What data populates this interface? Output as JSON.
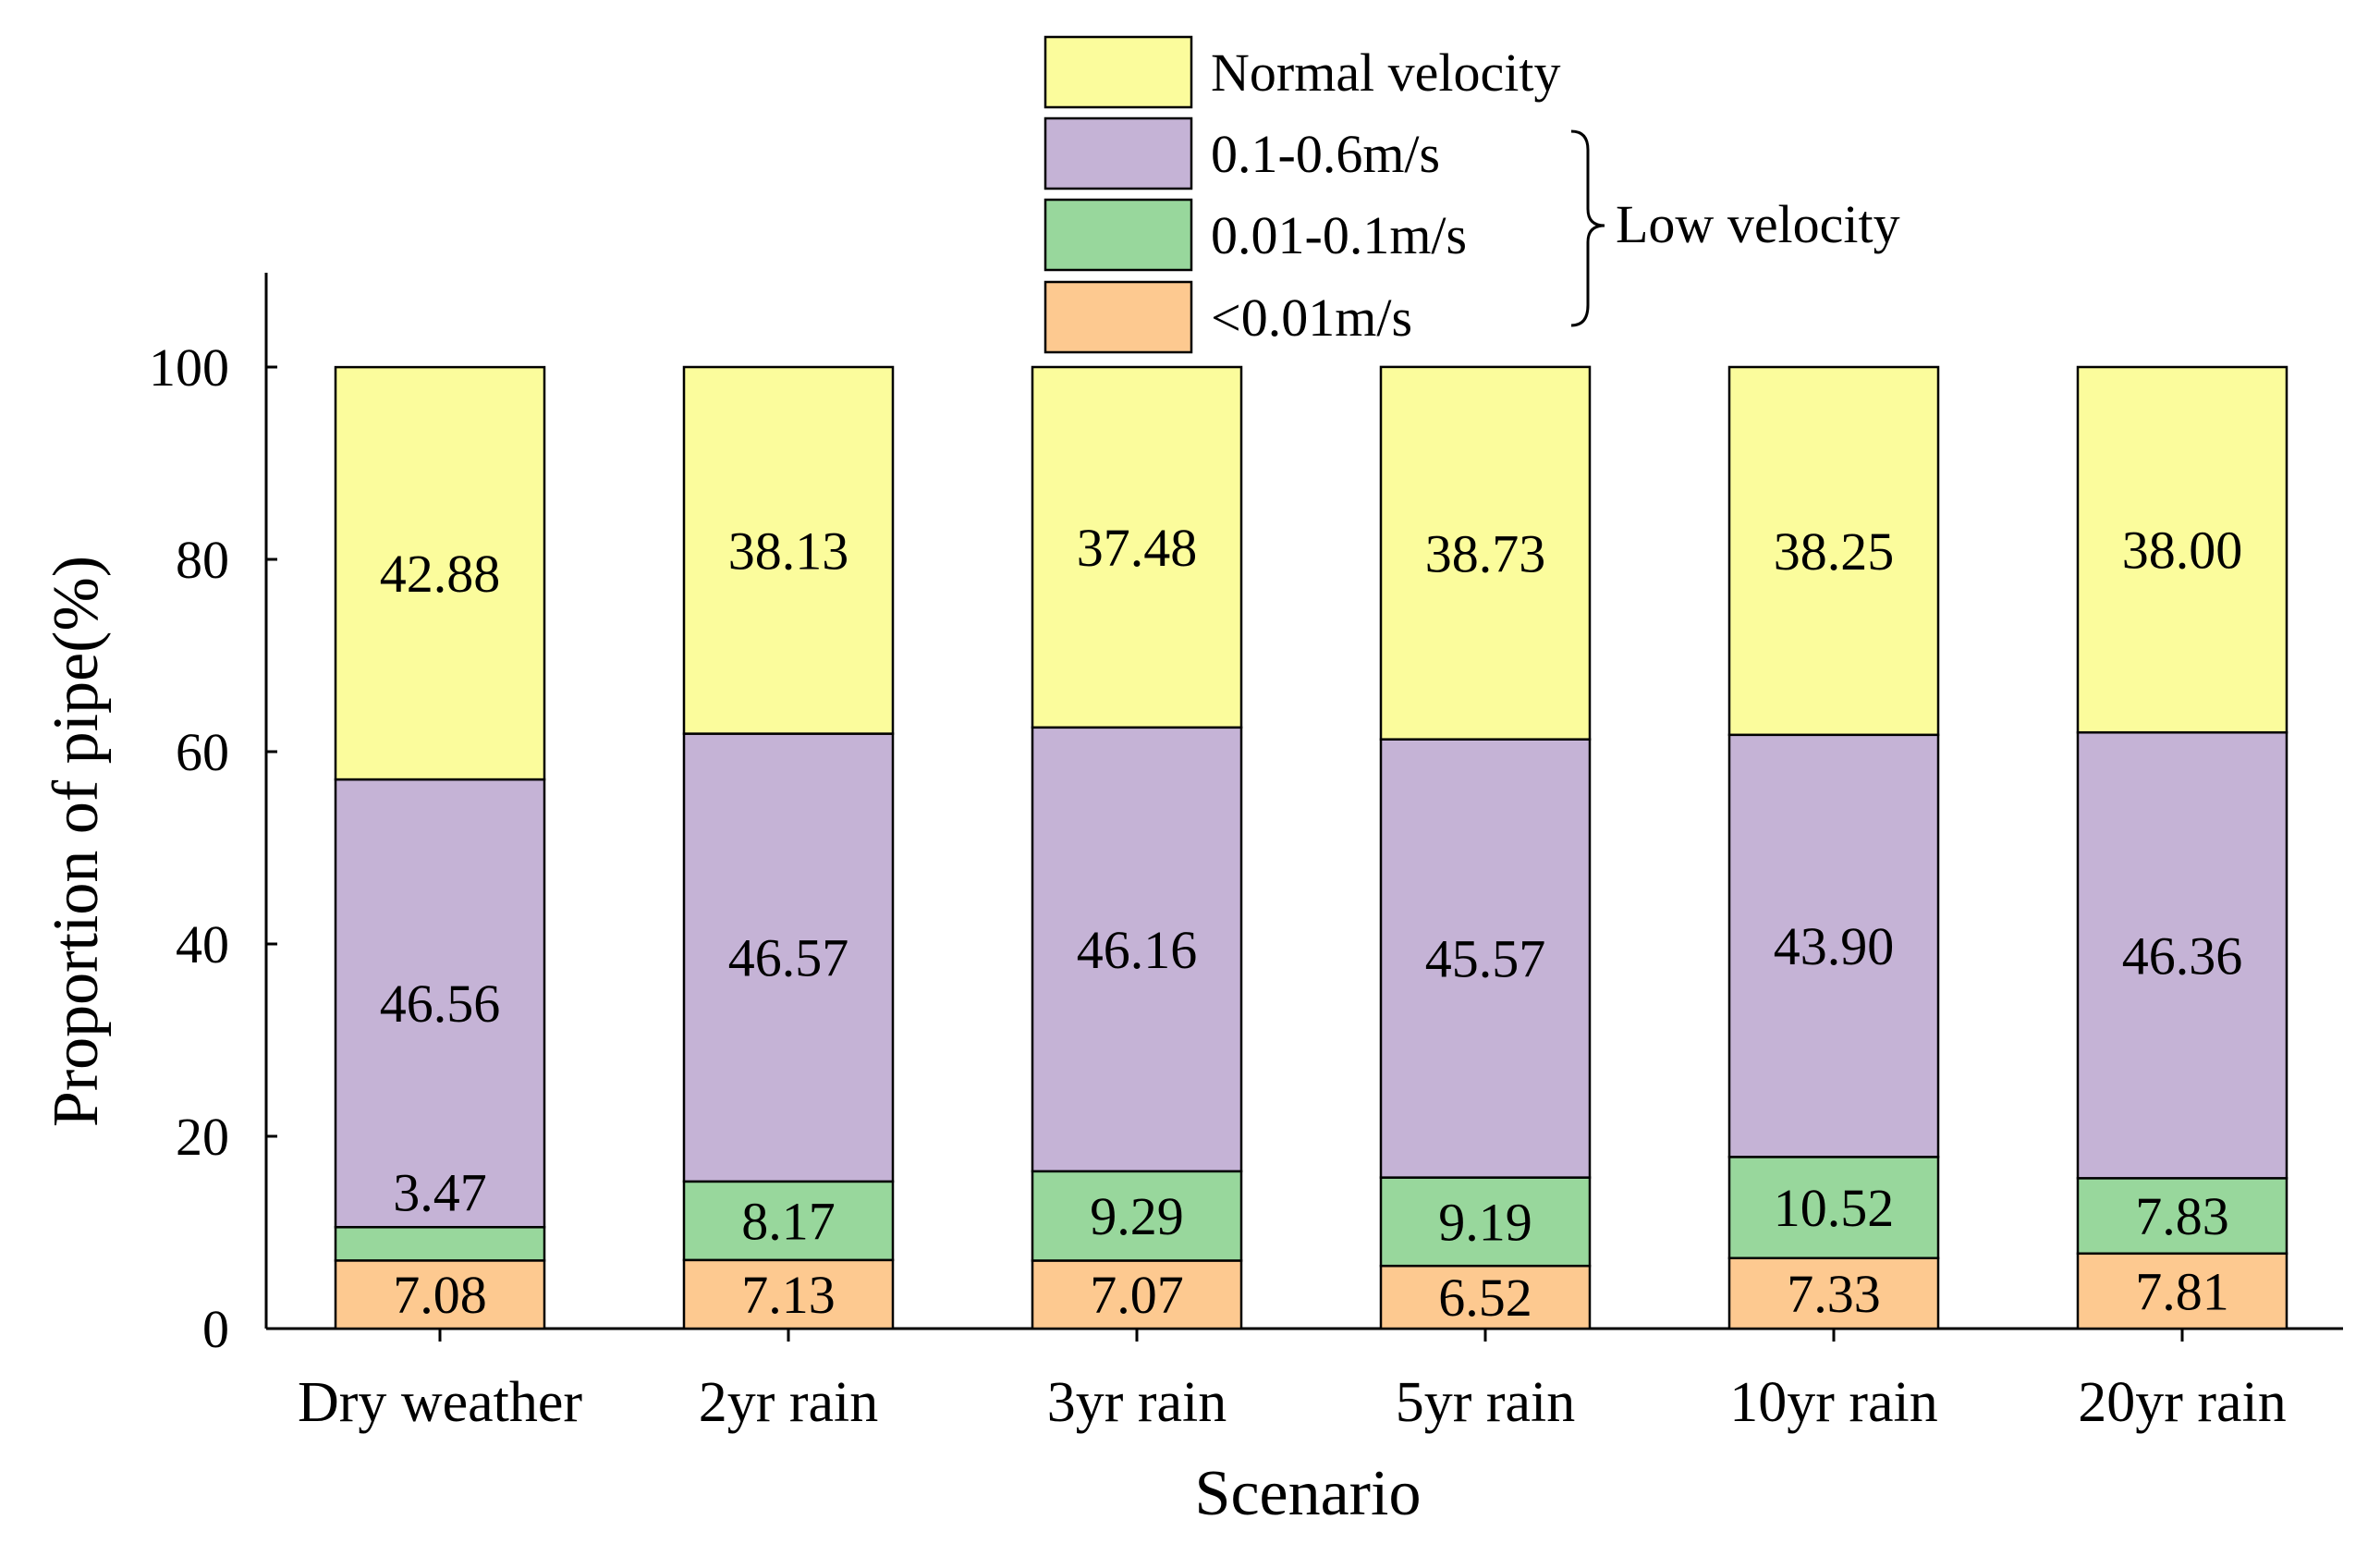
{
  "chart_data": {
    "type": "bar",
    "stacked": true,
    "xlabel": "Scenario",
    "ylabel": "Proportion of pipe(%)",
    "ylim": [
      0,
      110
    ],
    "yticks": [
      0,
      20,
      40,
      60,
      80,
      100
    ],
    "grid": false,
    "categories": [
      "Dry weather",
      "2yr rain",
      "3yr rain",
      "5yr rain",
      "10yr rain",
      "20yr rain"
    ],
    "series": [
      {
        "name": "<0.01m/s",
        "color": "#fdc990",
        "values": [
          7.08,
          7.13,
          7.07,
          6.52,
          7.33,
          7.81
        ],
        "labels": [
          "7.08",
          "7.13",
          "7.07",
          "6.52",
          "7.33",
          "7.81"
        ]
      },
      {
        "name": "0.01-0.1m/s",
        "color": "#98d79c",
        "values": [
          3.47,
          8.17,
          9.29,
          9.19,
          10.52,
          7.83
        ],
        "labels": [
          "3.47",
          "8.17",
          "9.29",
          "9.19",
          "10.52",
          "7.83"
        ]
      },
      {
        "name": "0.1-0.6m/s",
        "color": "#c5b3d6",
        "values": [
          46.56,
          46.57,
          46.16,
          45.57,
          43.9,
          46.36
        ],
        "labels": [
          "46.56",
          "46.57",
          "46.16",
          "45.57",
          "43.90",
          "46.36"
        ]
      },
      {
        "name": "Normal velocity",
        "color": "#fbfc9c",
        "values": [
          42.88,
          38.13,
          37.48,
          38.73,
          38.25,
          38.0
        ],
        "labels": [
          "42.88",
          "38.13",
          "37.48",
          "38.73",
          "38.25",
          "38.00"
        ]
      }
    ],
    "legend": {
      "placement": "top-center",
      "order": [
        "Normal velocity",
        "0.1-0.6m/s",
        "0.01-0.1m/s",
        "<0.01m/s"
      ],
      "group_label": "Low velocity",
      "group_members": [
        "0.1-0.6m/s",
        "0.01-0.1m/s",
        "<0.01m/s"
      ]
    }
  }
}
